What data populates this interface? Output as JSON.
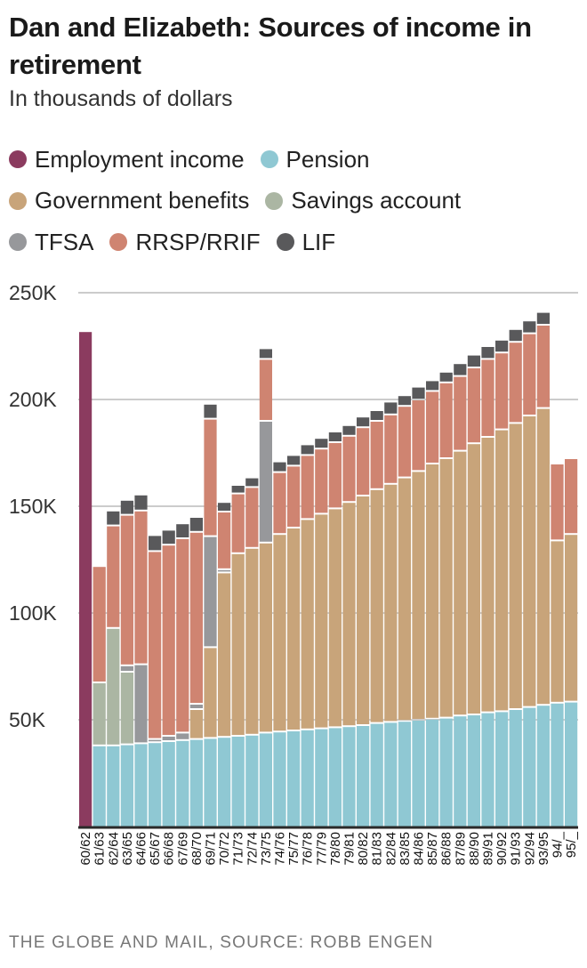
{
  "title": "Dan and Elizabeth: Sources of income in retirement",
  "subtitle": "In thousands of dollars",
  "source": "THE GLOBE AND MAIL, SOURCE: ROBB ENGEN",
  "chart_data": {
    "type": "bar",
    "stacked": true,
    "title": "Dan and Elizabeth: Sources of income in retirement",
    "subtitle": "In thousands of dollars",
    "xlabel": "",
    "ylabel": "",
    "ylim": [
      0,
      250
    ],
    "yticks": [
      50,
      100,
      150,
      200,
      250
    ],
    "ytick_labels": [
      "50K",
      "100K",
      "150K",
      "200K",
      "250K"
    ],
    "grid": true,
    "legend_placement": "top",
    "categories": [
      "60/62",
      "61/63",
      "62/64",
      "63/65",
      "64/66",
      "65/67",
      "66/68",
      "67/69",
      "68/70",
      "69/71",
      "70/72",
      "71/73",
      "72/74",
      "73/75",
      "74/76",
      "75/77",
      "76/78",
      "77/79",
      "78/80",
      "79/81",
      "80/82",
      "81/83",
      "82/84",
      "83/85",
      "84/86",
      "85/87",
      "86/88",
      "87/89",
      "88/90",
      "89/91",
      "90/92",
      "91/93",
      "92/94",
      "93/95",
      "94/_",
      "95/_"
    ],
    "series": [
      {
        "name": "Employment income",
        "color": "#8b3b5f",
        "values": [
          232,
          0,
          0,
          0,
          0,
          0,
          0,
          0,
          0,
          0,
          0,
          0,
          0,
          0,
          0,
          0,
          0,
          0,
          0,
          0,
          0,
          0,
          0,
          0,
          0,
          0,
          0,
          0,
          0,
          0,
          0,
          0,
          0,
          0,
          0,
          0
        ]
      },
      {
        "name": "Pension",
        "color": "#8fc8d3",
        "values": [
          0,
          38,
          38,
          38.5,
          39,
          39.5,
          40,
          40.5,
          41,
          41.5,
          42,
          42.5,
          43,
          44,
          44.5,
          45,
          45.5,
          46,
          46.5,
          47,
          47.5,
          48.5,
          49,
          49.5,
          50,
          50.5,
          51,
          52,
          52.5,
          53.5,
          54,
          55,
          56,
          57,
          58,
          58.5
        ]
      },
      {
        "name": "Government benefits",
        "color": "#c8a47a",
        "values": [
          0,
          0,
          0,
          0,
          0,
          0,
          0,
          0,
          14,
          42.5,
          77,
          85.5,
          87.5,
          89,
          92.5,
          95,
          98.5,
          100.5,
          102.5,
          105,
          107.5,
          109.5,
          111.5,
          114,
          116.5,
          119.5,
          121.5,
          124,
          127,
          129,
          132,
          134,
          136.5,
          139,
          76,
          78.5
        ]
      },
      {
        "name": "Savings account",
        "color": "#abb6a3",
        "values": [
          0,
          29.5,
          55,
          34,
          0,
          0,
          0,
          0,
          0,
          0,
          0,
          0,
          0,
          0,
          0,
          0,
          0,
          0,
          0,
          0,
          0,
          0,
          0,
          0,
          0,
          0,
          0,
          0,
          0,
          0,
          0,
          0,
          0,
          0,
          0,
          0
        ]
      },
      {
        "name": "TFSA",
        "color": "#97989b",
        "values": [
          0,
          0,
          0,
          3,
          37,
          1.5,
          2.5,
          3.5,
          2.5,
          52,
          1.5,
          0,
          0,
          57,
          0,
          0,
          0,
          0,
          0,
          0,
          0,
          0,
          0,
          0,
          0,
          0,
          0,
          0,
          0,
          0,
          0,
          0,
          0,
          0,
          0,
          0
        ]
      },
      {
        "name": "RRSP/RRIF",
        "color": "#cf8471",
        "values": [
          0,
          54.5,
          48,
          70.5,
          72,
          88,
          89.5,
          91,
          80.5,
          55,
          27,
          28,
          28.5,
          29,
          29,
          29,
          30,
          30.5,
          31,
          31,
          32,
          32,
          32.5,
          33.5,
          33.5,
          34,
          35.5,
          35,
          35.5,
          36.5,
          36,
          38,
          38.5,
          39,
          36,
          35.5
        ]
      },
      {
        "name": "LIF",
        "color": "#59595b",
        "values": [
          0,
          0,
          7,
          7,
          7.5,
          7.5,
          7,
          7,
          7,
          7,
          4.5,
          4,
          4.5,
          5,
          5,
          5,
          5,
          5,
          5,
          5,
          5,
          5,
          6,
          5,
          6,
          5,
          5,
          6,
          6,
          6,
          6,
          6,
          6,
          6,
          0,
          0
        ]
      }
    ]
  }
}
